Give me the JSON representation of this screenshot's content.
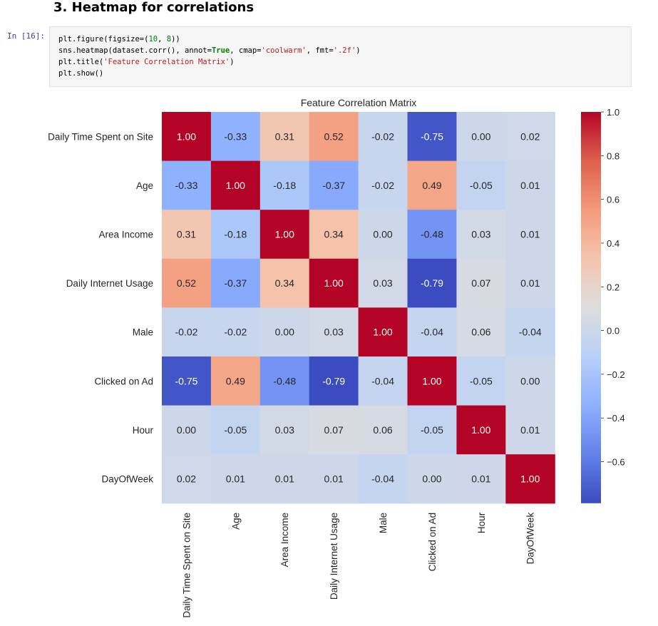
{
  "notebook": {
    "section_heading": "3. Heatmap for correlations",
    "cell_prompt": "In [16]:",
    "code_lines": [
      [
        {
          "t": "plt.figure(figsize=("
        },
        {
          "t": "10",
          "c": "num"
        },
        {
          "t": ", "
        },
        {
          "t": "8",
          "c": "num"
        },
        {
          "t": "))"
        }
      ],
      [
        {
          "t": "sns.heatmap(dataset.corr(), annot="
        },
        {
          "t": "True",
          "c": "kw"
        },
        {
          "t": ", cmap="
        },
        {
          "t": "'coolwarm'",
          "c": "str"
        },
        {
          "t": ", fmt="
        },
        {
          "t": "'.2f'",
          "c": "str"
        },
        {
          "t": ")"
        }
      ],
      [
        {
          "t": "plt.title("
        },
        {
          "t": "'Feature Correlation Matrix'",
          "c": "str"
        },
        {
          "t": ")"
        }
      ],
      [
        {
          "t": "plt.show()"
        }
      ]
    ]
  },
  "chart_data": {
    "type": "heatmap",
    "title": "Feature Correlation Matrix",
    "labels": [
      "Daily Time Spent on Site",
      "Age",
      "Area Income",
      "Daily Internet Usage",
      "Male",
      "Clicked on Ad",
      "Hour",
      "DayOfWeek"
    ],
    "matrix": [
      [
        1.0,
        -0.33,
        0.31,
        0.52,
        -0.02,
        -0.75,
        0.0,
        0.02
      ],
      [
        -0.33,
        1.0,
        -0.18,
        -0.37,
        -0.02,
        0.49,
        -0.05,
        0.01
      ],
      [
        0.31,
        -0.18,
        1.0,
        0.34,
        0.0,
        -0.48,
        0.03,
        0.01
      ],
      [
        0.52,
        -0.37,
        0.34,
        1.0,
        0.03,
        -0.79,
        0.07,
        0.01
      ],
      [
        -0.02,
        -0.02,
        0.0,
        0.03,
        1.0,
        -0.04,
        0.06,
        -0.04
      ],
      [
        -0.75,
        0.49,
        -0.48,
        -0.79,
        -0.04,
        1.0,
        -0.05,
        0.0
      ],
      [
        0.0,
        -0.05,
        0.03,
        0.07,
        0.06,
        -0.05,
        1.0,
        0.01
      ],
      [
        0.02,
        0.01,
        0.01,
        0.01,
        -0.04,
        0.0,
        0.01,
        1.0
      ]
    ],
    "annotation_format": ".2f",
    "colormap": "coolwarm",
    "colorbar_range": [
      -0.79,
      1.0
    ],
    "colorbar_ticks": [
      1.0,
      0.8,
      0.6,
      0.4,
      0.2,
      0.0,
      -0.2,
      -0.4,
      -0.6
    ],
    "colorbar_tick_labels": [
      "1.0",
      "0.8",
      "0.6",
      "0.4",
      "0.2",
      "0.0",
      "−0.2",
      "−0.4",
      "−0.6"
    ]
  }
}
